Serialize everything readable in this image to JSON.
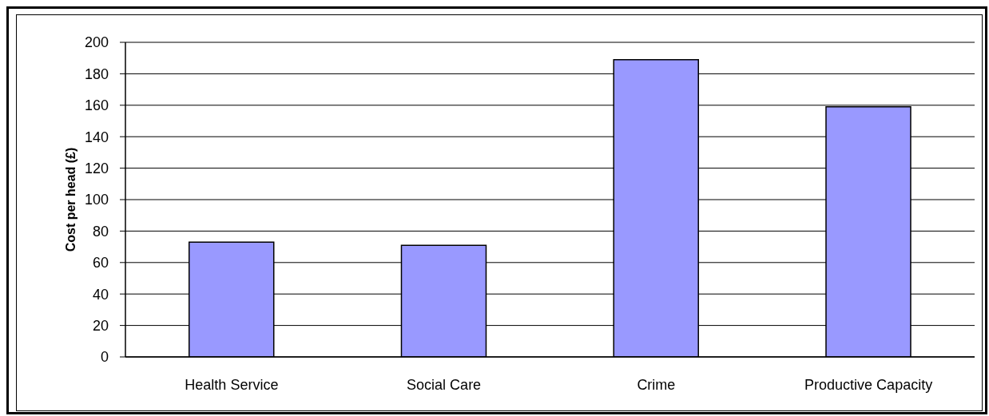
{
  "chart_data": {
    "type": "bar",
    "ylabel": "Cost per head (£)",
    "categories": [
      "Health Service",
      "Social Care",
      "Crime",
      "Productive Capacity"
    ],
    "values": [
      73,
      71,
      189,
      159
    ],
    "color": "#9999ff",
    "ylim": [
      0,
      200
    ],
    "yticks": [
      0,
      20,
      40,
      60,
      80,
      100,
      120,
      140,
      160,
      180,
      200
    ],
    "grid": "y"
  }
}
